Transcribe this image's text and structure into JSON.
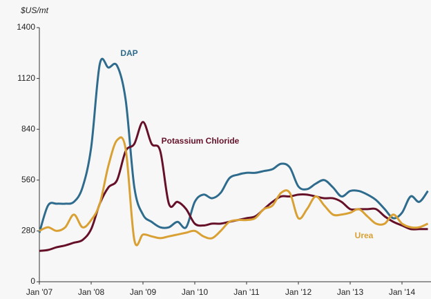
{
  "chart_data": {
    "type": "line",
    "y_axis_label": "$US/mt",
    "categories": [
      "Jan '07",
      null,
      null,
      null,
      null,
      null,
      "Jan '08",
      null,
      null,
      null,
      null,
      null,
      "Jan '09",
      null,
      null,
      null,
      null,
      null,
      "Jan '10",
      null,
      null,
      null,
      null,
      null,
      "Jan '11",
      null,
      null,
      null,
      null,
      null,
      "Jan '12",
      null,
      null,
      null,
      null,
      null,
      "Jan '13",
      null,
      null,
      null,
      null,
      null,
      "Jan '14",
      null,
      null,
      null
    ],
    "series": [
      {
        "name": "DAP",
        "color": "#2e6b8c",
        "values": [
          270,
          420,
          430,
          430,
          440,
          520,
          740,
          1200,
          1180,
          1190,
          1000,
          520,
          370,
          330,
          300,
          300,
          330,
          300,
          440,
          480,
          460,
          490,
          570,
          590,
          600,
          600,
          610,
          620,
          650,
          630,
          525,
          510,
          540,
          560,
          520,
          470,
          500,
          500,
          480,
          450,
          400,
          350,
          380,
          470,
          440,
          500
        ]
      },
      {
        "name": "Potassium Chloride",
        "color": "#651028",
        "values": [
          170,
          175,
          190,
          200,
          215,
          230,
          290,
          430,
          520,
          560,
          720,
          760,
          880,
          760,
          720,
          430,
          440,
          400,
          320,
          310,
          320,
          320,
          330,
          340,
          350,
          360,
          400,
          440,
          470,
          470,
          480,
          480,
          470,
          460,
          460,
          440,
          400,
          400,
          400,
          400,
          360,
          330,
          310,
          290,
          290,
          290
        ]
      },
      {
        "name": "Urea",
        "color": "#d9a033",
        "values": [
          280,
          300,
          280,
          300,
          370,
          300,
          340,
          430,
          640,
          780,
          730,
          230,
          260,
          250,
          240,
          250,
          260,
          270,
          280,
          250,
          240,
          280,
          330,
          340,
          340,
          350,
          400,
          420,
          490,
          490,
          350,
          400,
          470,
          420,
          370,
          370,
          380,
          400,
          360,
          320,
          320,
          370,
          320,
          300,
          300,
          320
        ]
      }
    ],
    "ylim": [
      0,
      1400
    ],
    "yticks": [
      0,
      280,
      560,
      840,
      1120,
      1400
    ]
  }
}
